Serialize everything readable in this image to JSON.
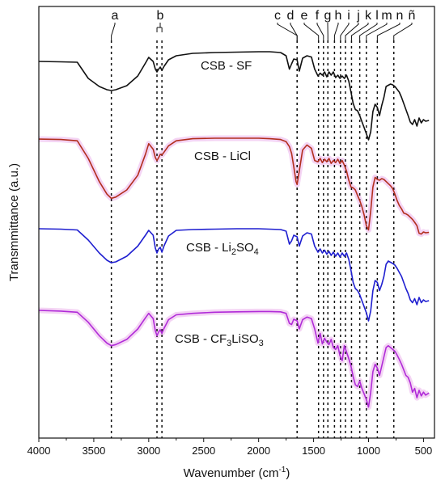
{
  "chart_data": {
    "type": "line",
    "xlabel": "Wavenumber (cm",
    "xlabel_superscript": "-1",
    "xlabel_suffix": ")",
    "ylabel": "Transmmittance (a.u.)",
    "xlim": [
      4000,
      400
    ],
    "x_reversed": true,
    "y_ticks_shown": false,
    "x_ticks": [
      4000,
      3500,
      3000,
      2500,
      2000,
      1500,
      1000,
      500
    ],
    "band_markers": [
      {
        "label": "a",
        "positions": [
          3340
        ]
      },
      {
        "label": "b",
        "positions": [
          2925,
          2880
        ]
      },
      {
        "label": "c",
        "positions": [
          1650
        ]
      },
      {
        "label": "d",
        "positions": [
          1650
        ]
      },
      {
        "label": "e",
        "positions": [
          1455
        ]
      },
      {
        "label": "f",
        "positions": [
          1410
        ]
      },
      {
        "label": "g",
        "positions": [
          1370
        ]
      },
      {
        "label": "h",
        "positions": [
          1310
        ]
      },
      {
        "label": "i",
        "positions": [
          1255
        ]
      },
      {
        "label": "j",
        "positions": [
          1210
        ]
      },
      {
        "label": "k",
        "positions": [
          1155
        ]
      },
      {
        "label": "l",
        "positions": [
          1080
        ]
      },
      {
        "label": "m",
        "positions": [
          1020
        ]
      },
      {
        "label": "n",
        "positions": [
          920
        ]
      },
      {
        "label": "ñ",
        "positions": [
          770
        ]
      }
    ],
    "series": [
      {
        "name": "CSB - SF",
        "color": "#111111",
        "glow": null,
        "x": [
          4000,
          3800,
          3650,
          3550,
          3450,
          3380,
          3340,
          3300,
          3200,
          3100,
          3030,
          3000,
          2960,
          2940,
          2925,
          2910,
          2895,
          2880,
          2860,
          2820,
          2750,
          2600,
          2400,
          2200,
          2000,
          1900,
          1800,
          1750,
          1720,
          1700,
          1680,
          1650,
          1630,
          1600,
          1560,
          1520,
          1490,
          1460,
          1440,
          1420,
          1400,
          1380,
          1360,
          1340,
          1320,
          1300,
          1280,
          1260,
          1240,
          1220,
          1200,
          1180,
          1160,
          1140,
          1120,
          1100,
          1080,
          1060,
          1040,
          1020,
          1000,
          980,
          960,
          940,
          920,
          900,
          880,
          860,
          840,
          820,
          800,
          780,
          760,
          740,
          720,
          700,
          680,
          660,
          640,
          620,
          600,
          580,
          560,
          540,
          520,
          500,
          480,
          450
        ],
        "y": [
          0.36,
          0.37,
          0.38,
          0.78,
          0.98,
          1.06,
          1.08,
          1.06,
          0.96,
          0.72,
          0.4,
          0.26,
          0.36,
          0.55,
          0.62,
          0.55,
          0.5,
          0.58,
          0.48,
          0.32,
          0.22,
          0.16,
          0.14,
          0.13,
          0.12,
          0.12,
          0.14,
          0.22,
          0.55,
          0.42,
          0.3,
          0.32,
          0.6,
          0.28,
          0.22,
          0.25,
          0.55,
          0.72,
          0.65,
          0.7,
          0.62,
          0.74,
          0.62,
          0.7,
          0.62,
          0.76,
          0.7,
          0.78,
          0.72,
          0.78,
          0.7,
          0.85,
          1.12,
          1.4,
          1.55,
          1.58,
          1.7,
          1.85,
          2.0,
          2.15,
          2.3,
          2.1,
          1.6,
          1.42,
          1.5,
          1.7,
          1.45,
          1.25,
          0.98,
          0.95,
          0.92,
          0.94,
          0.98,
          1.05,
          1.12,
          1.25,
          1.4,
          1.55,
          1.7,
          1.86,
          1.92,
          1.8,
          1.96,
          1.76,
          1.88,
          1.8,
          1.84,
          1.82
        ]
      },
      {
        "name": "CSB - LiCl",
        "color": "#b22e1e",
        "glow": "#f0c6f0",
        "x": [
          4000,
          3800,
          3650,
          3550,
          3450,
          3380,
          3340,
          3300,
          3200,
          3100,
          3030,
          3000,
          2960,
          2940,
          2925,
          2910,
          2895,
          2880,
          2860,
          2820,
          2750,
          2600,
          2400,
          2200,
          2000,
          1900,
          1800,
          1750,
          1720,
          1700,
          1680,
          1660,
          1650,
          1630,
          1600,
          1560,
          1520,
          1490,
          1460,
          1440,
          1420,
          1400,
          1380,
          1360,
          1340,
          1320,
          1300,
          1280,
          1260,
          1240,
          1220,
          1200,
          1180,
          1160,
          1140,
          1120,
          1100,
          1080,
          1060,
          1040,
          1020,
          1000,
          980,
          960,
          940,
          920,
          900,
          880,
          860,
          840,
          820,
          800,
          780,
          760,
          740,
          720,
          700,
          680,
          660,
          640,
          620,
          600,
          580,
          560,
          540,
          520,
          500,
          480,
          450
        ],
        "y": [
          0.04,
          0.05,
          0.08,
          0.5,
          1.05,
          1.35,
          1.45,
          1.42,
          1.25,
          0.9,
          0.4,
          0.15,
          0.28,
          0.48,
          0.55,
          0.48,
          0.4,
          0.42,
          0.35,
          0.2,
          0.08,
          0.03,
          0.02,
          0.02,
          0.02,
          0.03,
          0.05,
          0.1,
          0.22,
          0.38,
          0.7,
          1.05,
          1.12,
          0.8,
          0.3,
          0.18,
          0.26,
          0.55,
          0.58,
          0.5,
          0.6,
          0.52,
          0.58,
          0.5,
          0.62,
          0.55,
          0.6,
          0.52,
          0.62,
          0.55,
          0.66,
          0.8,
          1.02,
          1.18,
          1.2,
          1.25,
          1.38,
          1.5,
          1.65,
          1.85,
          2.1,
          2.2,
          1.75,
          1.18,
          0.95,
          1.0,
          1.02,
          0.98,
          1.0,
          1.05,
          1.1,
          1.15,
          1.22,
          1.35,
          1.5,
          1.62,
          1.7,
          1.8,
          1.82,
          1.85,
          1.9,
          1.95,
          2.02,
          2.1,
          2.28,
          2.3,
          2.25,
          2.27,
          2.26
        ]
      },
      {
        "name": "CSB - Li",
        "name_sub1": "2",
        "name_mid": "SO",
        "name_sub2": "4",
        "color": "#1f1fd0",
        "glow": null,
        "x": [
          4000,
          3800,
          3650,
          3550,
          3450,
          3380,
          3340,
          3300,
          3200,
          3100,
          3030,
          3000,
          2960,
          2940,
          2925,
          2910,
          2895,
          2880,
          2860,
          2820,
          2750,
          2600,
          2400,
          2200,
          2000,
          1900,
          1800,
          1750,
          1720,
          1700,
          1680,
          1650,
          1630,
          1600,
          1560,
          1520,
          1490,
          1460,
          1440,
          1420,
          1400,
          1380,
          1360,
          1340,
          1320,
          1300,
          1280,
          1260,
          1240,
          1220,
          1200,
          1180,
          1160,
          1140,
          1120,
          1100,
          1080,
          1060,
          1040,
          1020,
          1000,
          980,
          960,
          940,
          920,
          900,
          880,
          860,
          840,
          820,
          800,
          780,
          760,
          740,
          720,
          700,
          680,
          660,
          640,
          620,
          600,
          580,
          560,
          540,
          520,
          500,
          480,
          450
        ],
        "y": [
          0.02,
          0.03,
          0.05,
          0.3,
          0.62,
          0.8,
          0.86,
          0.84,
          0.7,
          0.45,
          0.18,
          0.06,
          0.18,
          0.5,
          0.62,
          0.52,
          0.48,
          0.6,
          0.44,
          0.2,
          0.06,
          0.04,
          0.03,
          0.02,
          0.02,
          0.03,
          0.04,
          0.08,
          0.4,
          0.32,
          0.18,
          0.22,
          0.45,
          0.2,
          0.12,
          0.15,
          0.45,
          0.6,
          0.52,
          0.62,
          0.55,
          0.65,
          0.58,
          0.68,
          0.6,
          0.7,
          0.62,
          0.72,
          0.62,
          0.7,
          0.62,
          0.78,
          1.05,
          1.35,
          1.5,
          1.55,
          1.65,
          1.8,
          1.95,
          2.1,
          2.3,
          2.05,
          1.55,
          1.3,
          1.35,
          1.55,
          1.4,
          1.2,
          0.9,
          0.82,
          0.85,
          0.88,
          0.92,
          1.0,
          1.1,
          1.2,
          1.35,
          1.5,
          1.62,
          1.78,
          1.85,
          1.75,
          1.9,
          1.72,
          1.85,
          1.78,
          1.82,
          1.8
        ]
      },
      {
        "name": "CSB - CF",
        "name_sub1": "3",
        "name_mid": "LiSO",
        "name_sub2": "3",
        "color": "#b02bd8",
        "glow": "#f0c6f0",
        "x": [
          4000,
          3800,
          3650,
          3550,
          3450,
          3380,
          3340,
          3300,
          3200,
          3100,
          3030,
          3000,
          2960,
          2940,
          2925,
          2910,
          2895,
          2880,
          2860,
          2820,
          2750,
          2600,
          2400,
          2200,
          2000,
          1900,
          1800,
          1750,
          1720,
          1700,
          1680,
          1650,
          1630,
          1600,
          1560,
          1520,
          1490,
          1460,
          1440,
          1420,
          1400,
          1380,
          1360,
          1340,
          1320,
          1300,
          1280,
          1260,
          1240,
          1220,
          1200,
          1180,
          1160,
          1140,
          1120,
          1100,
          1080,
          1060,
          1040,
          1020,
          1000,
          980,
          960,
          940,
          920,
          900,
          880,
          860,
          840,
          820,
          800,
          780,
          760,
          740,
          720,
          700,
          680,
          660,
          640,
          620,
          600,
          580,
          560,
          540,
          520,
          500,
          480,
          450
        ],
        "y": [
          0.0,
          0.02,
          0.05,
          0.32,
          0.68,
          0.88,
          0.95,
          0.92,
          0.78,
          0.5,
          0.2,
          0.08,
          0.22,
          0.55,
          0.68,
          0.58,
          0.52,
          0.62,
          0.48,
          0.25,
          0.12,
          0.08,
          0.05,
          0.04,
          0.03,
          0.03,
          0.04,
          0.08,
          0.35,
          0.38,
          0.24,
          0.28,
          0.5,
          0.25,
          0.18,
          0.22,
          0.5,
          0.88,
          0.62,
          0.9,
          0.75,
          0.85,
          0.92,
          0.78,
          1.0,
          1.05,
          0.95,
          1.22,
          1.35,
          0.95,
          1.12,
          1.3,
          1.5,
          1.78,
          2.0,
          2.05,
          1.9,
          2.1,
          2.25,
          2.4,
          2.6,
          2.2,
          1.65,
          1.45,
          1.55,
          1.75,
          1.5,
          1.25,
          1.0,
          0.95,
          1.0,
          1.05,
          1.1,
          1.2,
          1.32,
          1.45,
          1.6,
          1.75,
          1.8,
          1.95,
          2.2,
          2.1,
          2.35,
          2.15,
          2.3,
          2.2,
          2.28,
          2.22
        ]
      }
    ]
  }
}
